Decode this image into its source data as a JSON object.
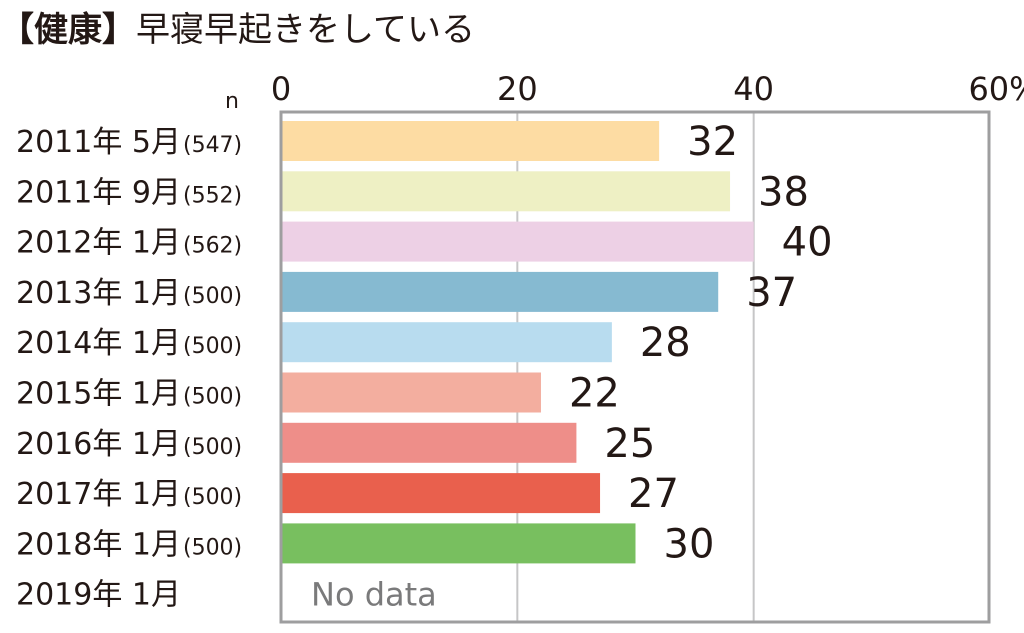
{
  "title": {
    "bracketed": "【健康】",
    "text": "早寝早起きをしている"
  },
  "chart_data": {
    "type": "bar",
    "orientation": "horizontal",
    "categories": [
      "2011年 5月",
      "2011年 9月",
      "2012年 1月",
      "2013年 1月",
      "2014年 1月",
      "2015年 1月",
      "2016年 1月",
      "2017年 1月",
      "2018年 1月",
      "2019年 1月"
    ],
    "sample_sizes": [
      "(547)",
      "(552)",
      "(562)",
      "(500)",
      "(500)",
      "(500)",
      "(500)",
      "(500)",
      "(500)",
      ""
    ],
    "values": [
      32,
      38,
      40,
      37,
      28,
      22,
      25,
      27,
      30,
      null
    ],
    "colors": [
      "#fddca3",
      "#eef0c4",
      "#edd0e5",
      "#86bad1",
      "#b8dcef",
      "#f3ae9f",
      "#ee8e89",
      "#e9604d",
      "#78bf5f",
      null
    ],
    "no_data_label": "No data",
    "n_label": "n",
    "x_ticks": [
      "0",
      "20",
      "40",
      "60%"
    ],
    "xlim": [
      0,
      60
    ],
    "grid": true
  }
}
